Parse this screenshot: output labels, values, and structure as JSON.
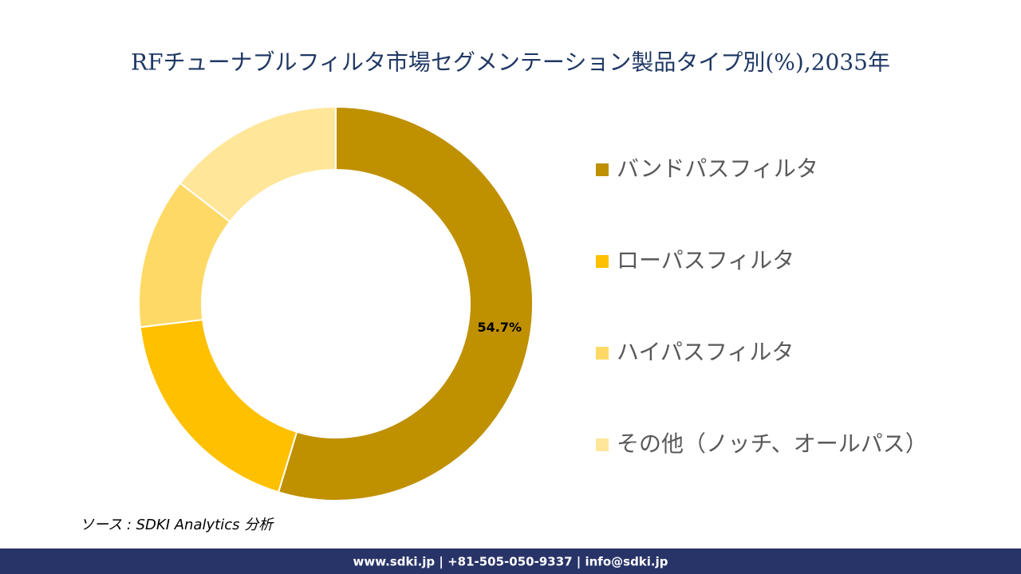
{
  "chart_data": {
    "type": "donut",
    "title": "RFチューナブルフィルタ市場セグメンテーション製品タイプ別(%),2035年",
    "categories": [
      "バンドパスフィルタ",
      "ローパスフィルタ",
      "ハイパスフィルタ",
      "その他（ノッチ、オールパス）"
    ],
    "values": [
      54.7,
      18.4,
      12.4,
      14.5
    ],
    "value_labels": [
      "54.7%",
      null,
      null,
      null
    ],
    "colors": [
      "#bf9000",
      "#ffc000",
      "#ffd966",
      "#ffe699"
    ]
  },
  "source": "ソース : SDKI Analytics 分析",
  "footer": "www.sdki.jp | +81-505-050-9337 | info@sdki.jp"
}
